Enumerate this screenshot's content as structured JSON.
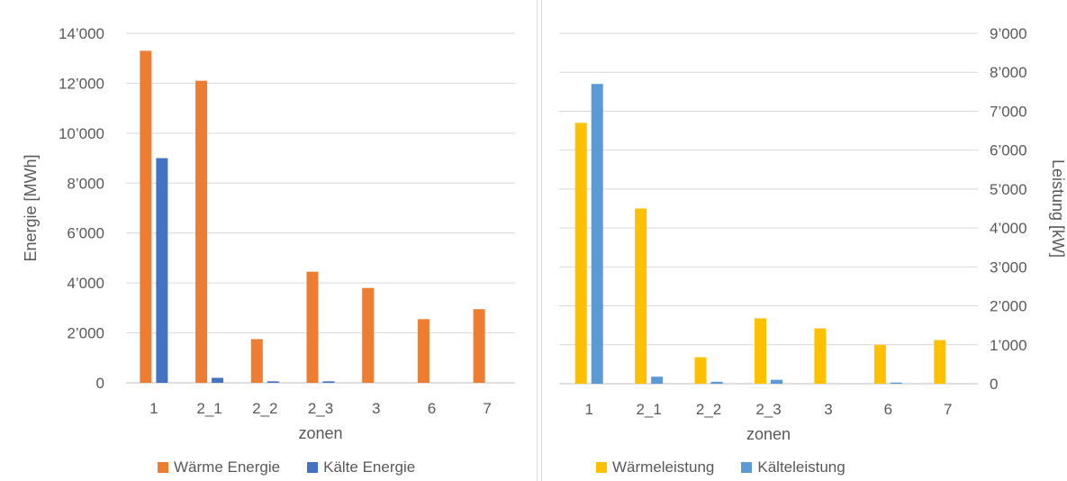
{
  "chart_data": [
    {
      "type": "bar",
      "title": "",
      "xlabel": "zonen",
      "ylabel": "Energie [MWh]",
      "ylim": [
        0,
        14000
      ],
      "y_ticks": [
        "0",
        "2’000",
        "4’000",
        "6’000",
        "8’000",
        "10’000",
        "12’000",
        "14’000"
      ],
      "y_tick_values": [
        0,
        2000,
        4000,
        6000,
        8000,
        10000,
        12000,
        14000
      ],
      "categories": [
        "1",
        "2_1",
        "2_2",
        "2_3",
        "3",
        "6",
        "7"
      ],
      "grid": true,
      "legend": "bottom",
      "series": [
        {
          "name": "Wärme Energie",
          "color": "#ED7D31",
          "values": [
            13300,
            12100,
            1750,
            4450,
            3800,
            2550,
            2950
          ]
        },
        {
          "name": "Kälte Energie",
          "color": "#4472C4",
          "values": [
            9000,
            200,
            60,
            60,
            0,
            0,
            0
          ]
        }
      ]
    },
    {
      "type": "bar",
      "title": "",
      "xlabel": "zonen",
      "ylabel": "Leistung [kW]",
      "ylim": [
        0,
        9000
      ],
      "y_axis_side": "right",
      "y_ticks": [
        "0",
        "1’000",
        "2’000",
        "3’000",
        "4’000",
        "5’000",
        "6’000",
        "7’000",
        "8’000",
        "9’000"
      ],
      "y_tick_values": [
        0,
        1000,
        2000,
        3000,
        4000,
        5000,
        6000,
        7000,
        8000,
        9000
      ],
      "categories": [
        "1",
        "2_1",
        "2_2",
        "2_3",
        "3",
        "6",
        "7"
      ],
      "grid": true,
      "legend": "bottom",
      "series": [
        {
          "name": "Wärmeleistung",
          "color": "#FFC000",
          "values": [
            6700,
            4500,
            680,
            1680,
            1420,
            1000,
            1120
          ]
        },
        {
          "name": "Kälteleistung",
          "color": "#5B9BD5",
          "values": [
            7700,
            180,
            50,
            100,
            0,
            30,
            0
          ]
        }
      ]
    }
  ]
}
